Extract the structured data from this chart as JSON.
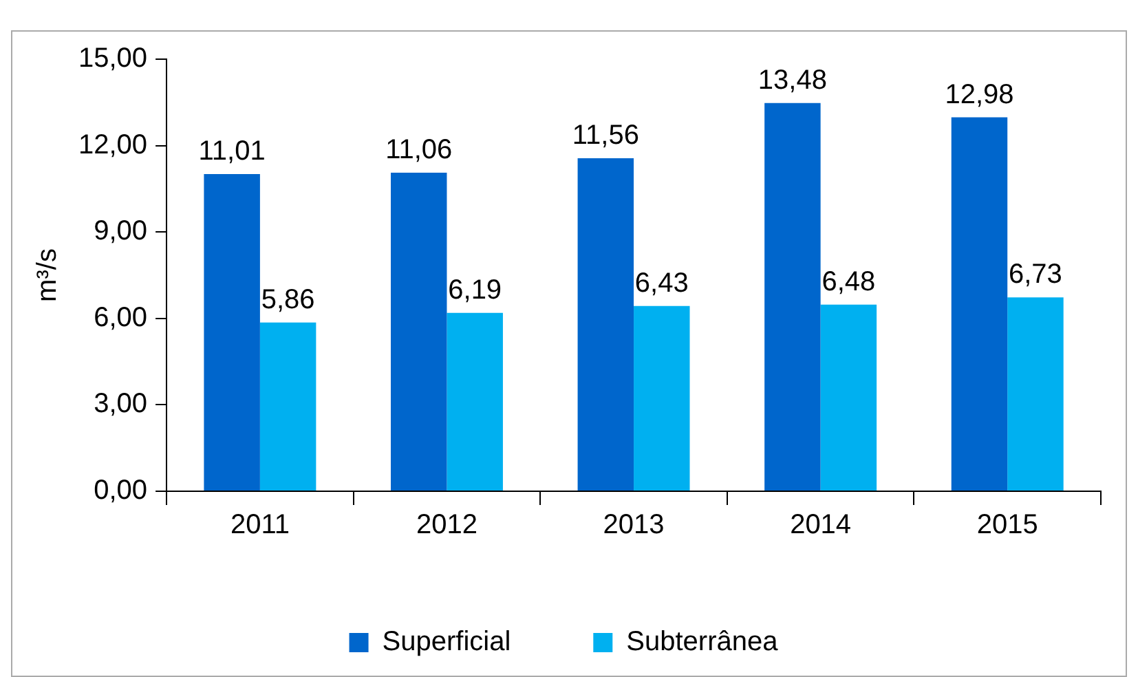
{
  "chart_data": {
    "type": "bar",
    "ylabel": "m³/s",
    "categories": [
      "2011",
      "2012",
      "2013",
      "2014",
      "2015"
    ],
    "series": [
      {
        "name": "Superficial",
        "color": "#0066cc",
        "values": [
          11.01,
          11.06,
          11.56,
          13.48,
          12.98
        ],
        "value_labels": [
          "11,01",
          "11,06",
          "11,56",
          "13,48",
          "12,98"
        ]
      },
      {
        "name": "Subterrânea",
        "color": "#00b0f0",
        "values": [
          5.86,
          6.19,
          6.43,
          6.48,
          6.73
        ],
        "value_labels": [
          "5,86",
          "6,19",
          "6,43",
          "6,48",
          "6,73"
        ]
      }
    ],
    "ylim": [
      0,
      15
    ],
    "yticks": [
      {
        "value": 0,
        "label": "0,00"
      },
      {
        "value": 3,
        "label": "3,00"
      },
      {
        "value": 6,
        "label": "6,00"
      },
      {
        "value": 9,
        "label": "9,00"
      },
      {
        "value": 12,
        "label": "12,00"
      },
      {
        "value": 15,
        "label": "15,00"
      }
    ],
    "grid": false,
    "legend": "bottom"
  }
}
